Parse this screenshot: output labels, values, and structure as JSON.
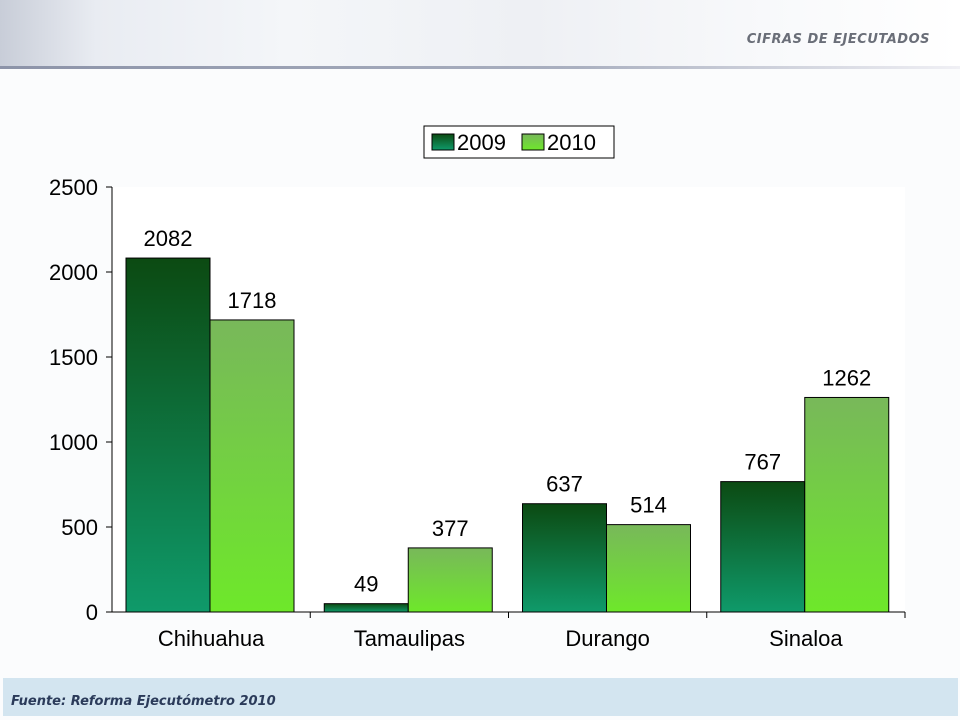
{
  "header": {
    "title": "CIFRAS DE EJECUTADOS"
  },
  "footer": {
    "source": "Fuente: Reforma Ejecutómetro 2010"
  },
  "chart_data": {
    "type": "bar",
    "categories": [
      "Chihuahua",
      "Tamaulipas",
      "Durango",
      "Sinaloa"
    ],
    "series": [
      {
        "name": "2009",
        "values": [
          2082,
          49,
          637,
          767
        ],
        "color": "#0e6a2c"
      },
      {
        "name": "2010",
        "values": [
          1718,
          377,
          514,
          1262
        ],
        "color": "#5fd02e"
      }
    ],
    "ylim": [
      0,
      2500
    ],
    "yticks": [
      0,
      500,
      1000,
      1500,
      2000,
      2500
    ],
    "legend": "top-center",
    "grid": false
  }
}
